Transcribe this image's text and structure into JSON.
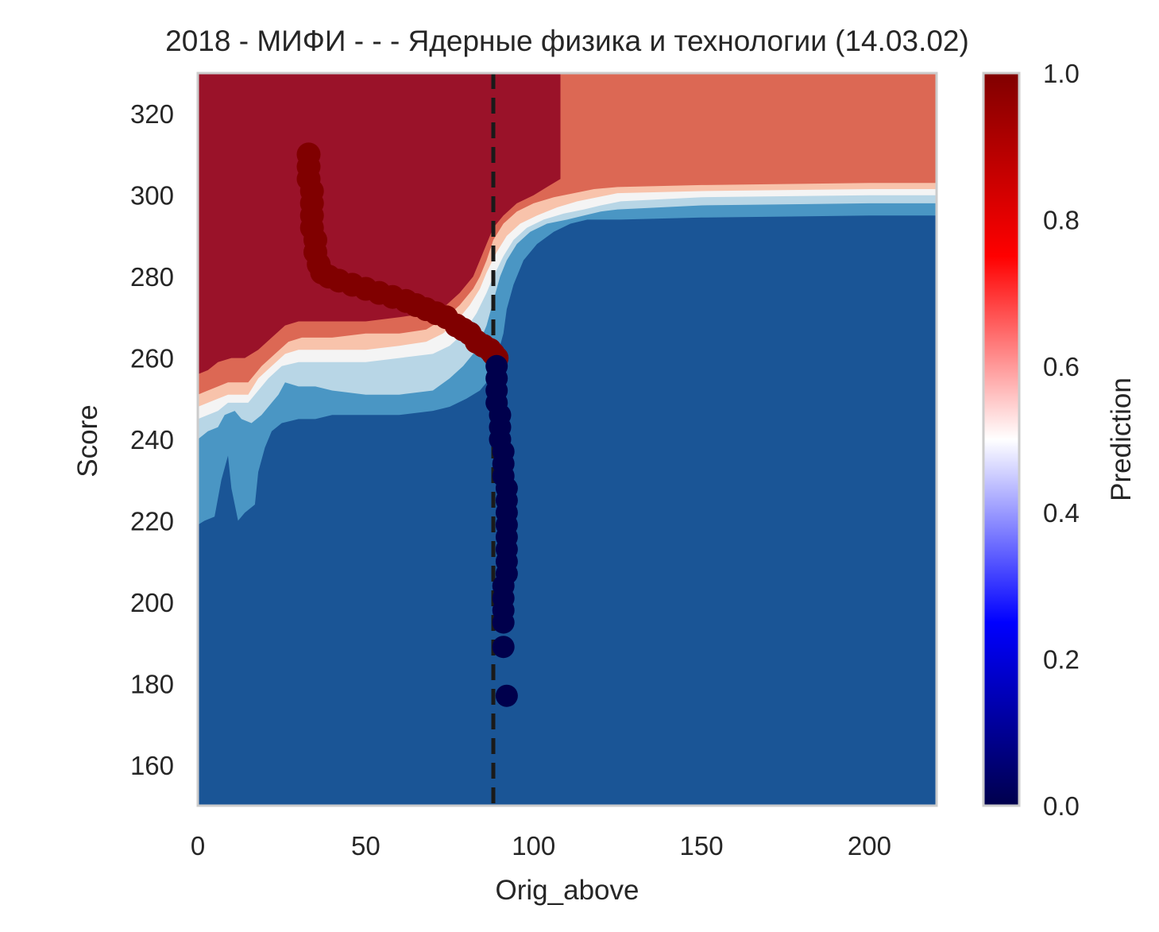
{
  "chart_data": {
    "type": "contour+scatter",
    "title": "2018 - МИФИ - - - Ядерные физика и технологии (14.03.02)",
    "xlabel": "Orig_above",
    "ylabel": "Score",
    "xlim": [
      0,
      220
    ],
    "ylim": [
      150,
      330
    ],
    "xticks": [
      0,
      50,
      100,
      150,
      200
    ],
    "yticks": [
      160,
      180,
      200,
      220,
      240,
      260,
      280,
      300,
      320
    ],
    "grid": false,
    "colorbar": {
      "label": "Prediction",
      "ticks": [
        "0.0",
        "0.2",
        "0.4",
        "0.6",
        "0.8",
        "1.0"
      ],
      "colormap": [
        "#00004c",
        "#0000ff",
        "#ffffff",
        "#ff0000",
        "#800000"
      ]
    },
    "vline": {
      "x": 88,
      "style": "dashed",
      "color": "#1a1a1a"
    },
    "contour_levels": [
      {
        "level": "0.0-0.2",
        "color": "#1a5596"
      },
      {
        "level": "0.2-0.4",
        "color": "#4a96c4"
      },
      {
        "level": "0.4-0.5",
        "color": "#b8d6e6"
      },
      {
        "level": "0.5-0.6",
        "color": "#f4f4f4"
      },
      {
        "level": "0.6-0.7",
        "color": "#f8c3ab"
      },
      {
        "level": "0.7-0.8",
        "color": "#dc6854"
      },
      {
        "level": "0.8-1.0",
        "color": "#9a1229"
      }
    ],
    "boundaries": {
      "b1": [
        [
          0,
          219
        ],
        [
          2,
          220
        ],
        [
          5,
          221
        ],
        [
          7,
          230
        ],
        [
          9,
          236
        ],
        [
          10,
          228
        ],
        [
          12,
          220
        ],
        [
          14,
          222
        ],
        [
          17,
          224
        ],
        [
          18,
          232
        ],
        [
          20,
          238
        ],
        [
          22,
          242
        ],
        [
          25,
          244
        ],
        [
          30,
          245
        ],
        [
          35,
          245
        ],
        [
          40,
          246
        ],
        [
          50,
          246
        ],
        [
          60,
          246
        ],
        [
          70,
          247
        ],
        [
          75,
          248
        ],
        [
          80,
          250
        ],
        [
          84,
          252
        ],
        [
          87,
          255
        ],
        [
          89,
          260
        ],
        [
          91,
          266
        ],
        [
          92,
          272
        ],
        [
          94,
          278
        ],
        [
          97,
          284
        ],
        [
          101,
          288
        ],
        [
          106,
          291
        ],
        [
          111,
          293
        ],
        [
          116,
          294
        ],
        [
          121,
          294
        ],
        [
          126,
          294
        ],
        [
          150,
          294.5
        ],
        [
          200,
          295
        ],
        [
          220,
          295
        ]
      ],
      "b2": [
        [
          0,
          240
        ],
        [
          3,
          242
        ],
        [
          6,
          243
        ],
        [
          8,
          246
        ],
        [
          11,
          247
        ],
        [
          13,
          245
        ],
        [
          16,
          244
        ],
        [
          19,
          246
        ],
        [
          22,
          249
        ],
        [
          24,
          251
        ],
        [
          26,
          254
        ],
        [
          30,
          253
        ],
        [
          35,
          253
        ],
        [
          40,
          252
        ],
        [
          50,
          251
        ],
        [
          60,
          251
        ],
        [
          70,
          252
        ],
        [
          75,
          255
        ],
        [
          79,
          258
        ],
        [
          83,
          262
        ],
        [
          86,
          268
        ],
        [
          88,
          274
        ],
        [
          90,
          280
        ],
        [
          92,
          284
        ],
        [
          95,
          288
        ],
        [
          99,
          291
        ],
        [
          104,
          293
        ],
        [
          110,
          294
        ],
        [
          115,
          295
        ],
        [
          120,
          296
        ],
        [
          125,
          296.5
        ],
        [
          150,
          297.5
        ],
        [
          200,
          298
        ],
        [
          220,
          298
        ]
      ],
      "b3": [
        [
          0,
          245
        ],
        [
          3,
          246
        ],
        [
          6,
          247
        ],
        [
          9,
          249
        ],
        [
          12,
          249
        ],
        [
          15,
          249
        ],
        [
          18,
          252
        ],
        [
          21,
          255
        ],
        [
          25,
          258
        ],
        [
          30,
          259
        ],
        [
          35,
          259
        ],
        [
          40,
          259
        ],
        [
          50,
          259
        ],
        [
          60,
          260
        ],
        [
          70,
          261
        ],
        [
          75,
          263
        ],
        [
          79,
          266
        ],
        [
          83,
          271
        ],
        [
          86,
          276
        ],
        [
          88,
          280
        ],
        [
          91,
          285
        ],
        [
          94,
          289
        ],
        [
          98,
          292
        ],
        [
          103,
          294
        ],
        [
          109,
          295.5
        ],
        [
          115,
          296.5
        ],
        [
          120,
          297.5
        ],
        [
          126,
          298.5
        ],
        [
          150,
          299.5
        ],
        [
          200,
          300
        ],
        [
          220,
          300
        ]
      ],
      "b4": [
        [
          0,
          248
        ],
        [
          3,
          249
        ],
        [
          6,
          250
        ],
        [
          9,
          251
        ],
        [
          12,
          251
        ],
        [
          15,
          251
        ],
        [
          18,
          255
        ],
        [
          22,
          258
        ],
        [
          26,
          261
        ],
        [
          30,
          262
        ],
        [
          35,
          262
        ],
        [
          40,
          262
        ],
        [
          50,
          262
        ],
        [
          60,
          263
        ],
        [
          68,
          264
        ],
        [
          73,
          266
        ],
        [
          77,
          269
        ],
        [
          81,
          273
        ],
        [
          84,
          277
        ],
        [
          86,
          281
        ],
        [
          89,
          286
        ],
        [
          92,
          290
        ],
        [
          96,
          293
        ],
        [
          101,
          295
        ],
        [
          107,
          297
        ],
        [
          113,
          298.5
        ],
        [
          119,
          299.5
        ],
        [
          125,
          300.5
        ],
        [
          150,
          301
        ],
        [
          200,
          301.5
        ],
        [
          220,
          301.5
        ]
      ],
      "b5": [
        [
          0,
          251
        ],
        [
          3,
          252
        ],
        [
          6,
          253
        ],
        [
          9,
          254
        ],
        [
          12,
          254
        ],
        [
          15,
          254
        ],
        [
          19,
          258
        ],
        [
          23,
          261
        ],
        [
          27,
          264
        ],
        [
          31,
          265
        ],
        [
          36,
          265
        ],
        [
          40,
          265
        ],
        [
          50,
          266
        ],
        [
          60,
          266
        ],
        [
          68,
          267
        ],
        [
          74,
          270
        ],
        [
          78,
          273
        ],
        [
          82,
          277
        ],
        [
          84,
          280
        ],
        [
          86,
          284
        ],
        [
          88,
          289
        ],
        [
          91,
          293
        ],
        [
          95,
          296
        ],
        [
          100,
          298
        ],
        [
          106,
          299.5
        ],
        [
          112,
          300.5
        ],
        [
          118,
          301.5
        ],
        [
          125,
          302
        ],
        [
          150,
          302.5
        ],
        [
          200,
          303
        ],
        [
          220,
          303
        ]
      ],
      "b6": [
        [
          0,
          256
        ],
        [
          3,
          257
        ],
        [
          6,
          259
        ],
        [
          10,
          260
        ],
        [
          14,
          260
        ],
        [
          18,
          262
        ],
        [
          22,
          265
        ],
        [
          26,
          268
        ],
        [
          30,
          269
        ],
        [
          35,
          269
        ],
        [
          40,
          269
        ],
        [
          50,
          269
        ],
        [
          60,
          270
        ],
        [
          68,
          271
        ],
        [
          74,
          273
        ],
        [
          78,
          276
        ],
        [
          82,
          280
        ],
        [
          84,
          284
        ],
        [
          86,
          288
        ],
        [
          88,
          292
        ],
        [
          91,
          295
        ],
        [
          95,
          298
        ],
        [
          100,
          300
        ],
        [
          104,
          302
        ],
        [
          108,
          304
        ],
        [
          108,
          330
        ]
      ]
    },
    "scatter": {
      "high": [
        [
          33,
          310
        ],
        [
          33,
          307
        ],
        [
          33,
          304
        ],
        [
          34,
          301
        ],
        [
          34,
          298
        ],
        [
          34,
          295
        ],
        [
          34,
          292
        ],
        [
          35,
          289
        ],
        [
          35,
          286
        ],
        [
          36,
          283
        ],
        [
          37,
          281
        ],
        [
          39,
          280
        ],
        [
          42,
          279
        ],
        [
          46,
          278
        ],
        [
          50,
          277
        ],
        [
          54,
          276
        ],
        [
          58,
          275
        ],
        [
          62,
          274
        ],
        [
          65,
          273
        ],
        [
          68,
          272
        ],
        [
          71,
          271
        ],
        [
          74,
          270
        ],
        [
          77,
          268
        ],
        [
          79,
          267
        ],
        [
          81,
          266
        ],
        [
          83,
          264
        ],
        [
          85,
          263
        ],
        [
          87,
          262
        ],
        [
          88,
          261
        ],
        [
          89,
          260
        ]
      ],
      "low": [
        [
          89,
          258
        ],
        [
          89,
          255
        ],
        [
          89,
          252
        ],
        [
          89,
          249
        ],
        [
          90,
          246
        ],
        [
          90,
          243
        ],
        [
          90,
          240
        ],
        [
          91,
          237
        ],
        [
          91,
          234
        ],
        [
          91,
          231
        ],
        [
          92,
          228
        ],
        [
          92,
          225
        ],
        [
          92,
          222
        ],
        [
          92,
          219
        ],
        [
          92,
          216
        ],
        [
          92,
          213
        ],
        [
          92,
          210
        ],
        [
          92,
          207
        ],
        [
          91,
          204
        ],
        [
          91,
          201
        ],
        [
          91,
          198
        ],
        [
          91,
          195
        ],
        [
          91,
          189
        ],
        [
          92,
          177
        ]
      ]
    }
  }
}
